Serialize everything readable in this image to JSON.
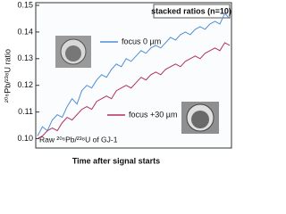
{
  "chart_data": {
    "type": "line",
    "title": "stacked ratios (n=10)",
    "annotation": "Raw ²⁰⁶Pb/²³⁸U of GJ-1",
    "y_label": "²⁰⁶Pb/²³⁸U ratio",
    "x_label": "Time after signal starts",
    "ylim": [
      0.0965,
      0.151
    ],
    "yticks": [
      {
        "value": 0.1,
        "label": "0.10"
      },
      0.11,
      0.12,
      0.13,
      0.14,
      0.15
    ],
    "series": [
      {
        "name": "focus 0 µm",
        "color": "#4f8fd6",
        "values": [
          0.101,
          0.1045,
          0.103,
          0.107,
          0.109,
          0.108,
          0.112,
          0.115,
          0.113,
          0.118,
          0.12,
          0.119,
          0.122,
          0.124,
          0.123,
          0.126,
          0.128,
          0.127,
          0.13,
          0.129,
          0.131,
          0.133,
          0.132,
          0.134,
          0.135,
          0.134,
          0.136,
          0.138,
          0.137,
          0.139,
          0.14,
          0.139,
          0.141,
          0.142,
          0.141,
          0.143,
          0.144,
          0.143,
          0.147,
          0.145
        ]
      },
      {
        "name": "focus +30 µm",
        "color": "#b2305e",
        "values": [
          0.1,
          0.101,
          0.103,
          0.104,
          0.103,
          0.106,
          0.108,
          0.107,
          0.109,
          0.111,
          0.112,
          0.111,
          0.114,
          0.115,
          0.116,
          0.115,
          0.118,
          0.119,
          0.12,
          0.119,
          0.121,
          0.123,
          0.122,
          0.124,
          0.125,
          0.124,
          0.126,
          0.127,
          0.128,
          0.127,
          0.129,
          0.13,
          0.131,
          0.13,
          0.132,
          0.133,
          0.134,
          0.133,
          0.136,
          0.135
        ]
      }
    ]
  }
}
